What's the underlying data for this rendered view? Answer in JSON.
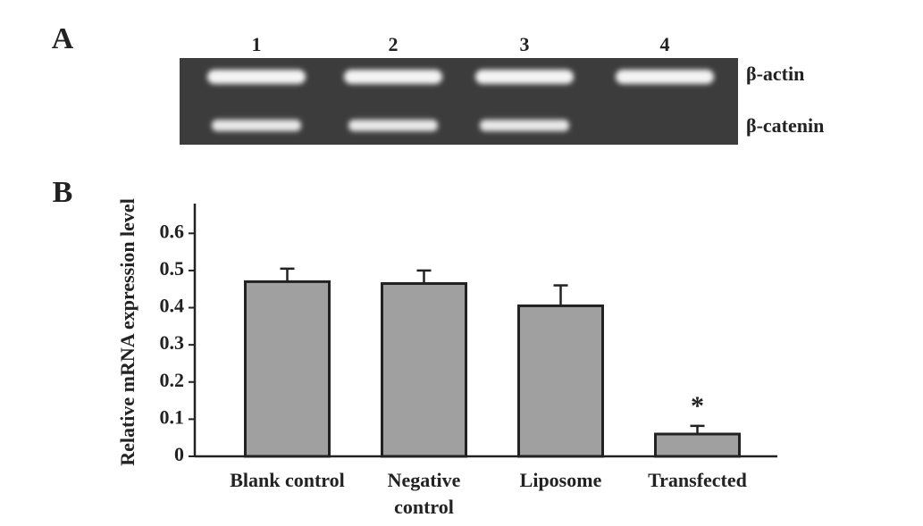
{
  "panel_a": {
    "label": "A",
    "lanes": [
      "1",
      "2",
      "3",
      "4"
    ],
    "bands": [
      "β-actin",
      "β-catenin"
    ]
  },
  "chart_data": {
    "type": "bar",
    "panel_label": "B",
    "y_label": "Relative mRNA expression level",
    "categories": [
      "Blank control",
      "Negative control",
      "Liposome",
      "Transfected"
    ],
    "values": [
      0.47,
      0.465,
      0.405,
      0.06
    ],
    "errors": [
      0.035,
      0.035,
      0.055,
      0.022
    ],
    "significance": [
      null,
      null,
      null,
      "*"
    ],
    "color": "#a0a0a0",
    "ylim": [
      0,
      0.68
    ],
    "yticks": [
      0,
      0.1,
      0.2,
      0.3,
      0.4,
      0.5,
      0.6
    ]
  }
}
